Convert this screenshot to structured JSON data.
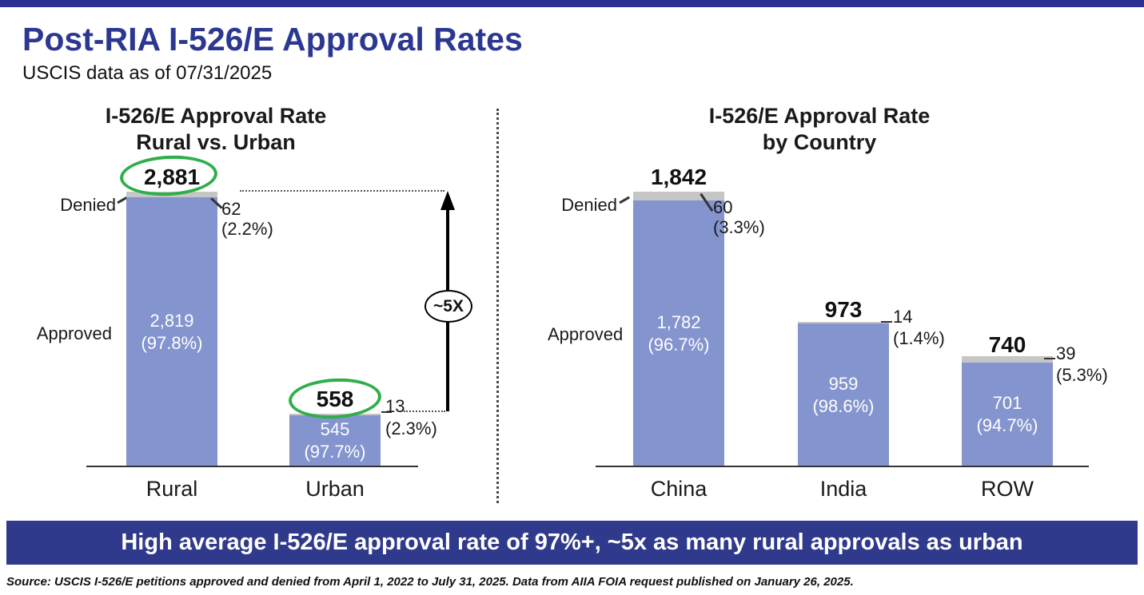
{
  "page": {
    "title": "Post-RIA I-526/E Approval Rates",
    "subtitle": "USCIS data as of 07/31/2025",
    "banner": "High average I-526/E approval rate of 97%+, ~5x as many rural approvals as urban",
    "source": "Source: USCIS I-526/E petitions approved and denied from April 1, 2022 to July 31, 2025. Data from AIIA FOIA request published on January 26, 2025.",
    "colors": {
      "accent_navy": "#2c3792",
      "topbar_bg": "#2b3191",
      "banner_bg": "#2f3a8c",
      "bar_blue": "#8494ce",
      "denied_gray": "#c6c6c6",
      "circle_green": "#2fae4a"
    }
  },
  "chart_data": [
    {
      "type": "bar",
      "title": "I-526/E Approval Rate",
      "subtitle": "Rural vs. Urban",
      "stacked": true,
      "legend_position": "none",
      "grid": false,
      "ylim": [
        0,
        2881
      ],
      "denied_label": "Denied",
      "approved_label": "Approved",
      "multiplier_annotation": "~5X",
      "categories": [
        "Rural",
        "Urban"
      ],
      "series": [
        {
          "name": "Approved",
          "values": [
            2819,
            545
          ]
        },
        {
          "name": "Denied",
          "values": [
            62,
            13
          ]
        }
      ],
      "bars": [
        {
          "category": "Rural",
          "total": 2881,
          "approved": 2819,
          "denied": 62,
          "total_label": "2,881",
          "approved_value": "2,819",
          "approved_pct": "(97.8%)",
          "denied_value": "62",
          "denied_pct": "(2.2%)",
          "circled": true
        },
        {
          "category": "Urban",
          "total": 558,
          "approved": 545,
          "denied": 13,
          "total_label": "558",
          "approved_value": "545",
          "approved_pct": "(97.7%)",
          "denied_value": "13",
          "denied_pct": "(2.3%)",
          "circled": true
        }
      ]
    },
    {
      "type": "bar",
      "title": "I-526/E Approval Rate",
      "subtitle": "by Country",
      "stacked": true,
      "legend_position": "none",
      "grid": false,
      "ylim": [
        0,
        1842
      ],
      "denied_label": "Denied",
      "approved_label": "Approved",
      "categories": [
        "China",
        "India",
        "ROW"
      ],
      "series": [
        {
          "name": "Approved",
          "values": [
            1782,
            959,
            701
          ]
        },
        {
          "name": "Denied",
          "values": [
            60,
            14,
            39
          ]
        }
      ],
      "bars": [
        {
          "category": "China",
          "total": 1842,
          "approved": 1782,
          "denied": 60,
          "total_label": "1,842",
          "approved_value": "1,782",
          "approved_pct": "(96.7%)",
          "denied_value": "60",
          "denied_pct": "(3.3%)",
          "circled": false
        },
        {
          "category": "India",
          "total": 973,
          "approved": 959,
          "denied": 14,
          "total_label": "973",
          "approved_value": "959",
          "approved_pct": "(98.6%)",
          "denied_value": "14",
          "denied_pct": "(1.4%)",
          "circled": false
        },
        {
          "category": "ROW",
          "total": 740,
          "approved": 701,
          "denied": 39,
          "total_label": "740",
          "approved_value": "701",
          "approved_pct": "(94.7%)",
          "denied_value": "39",
          "denied_pct": "(5.3%)",
          "circled": false
        }
      ]
    }
  ]
}
